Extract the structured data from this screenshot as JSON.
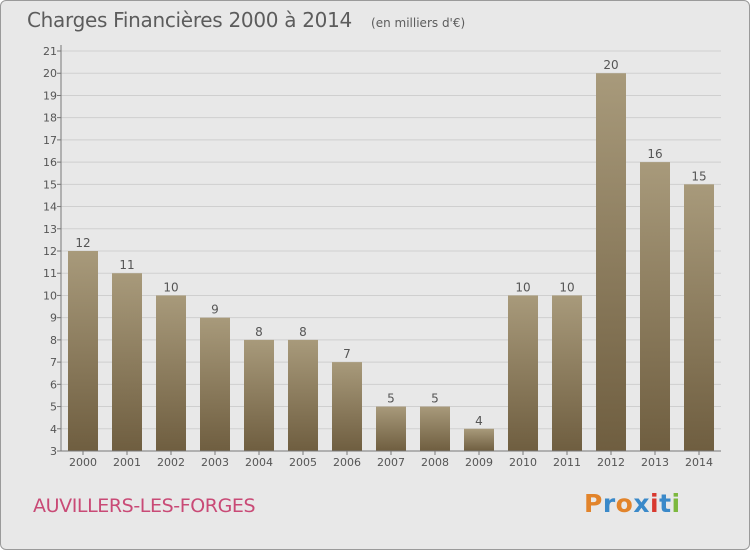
{
  "header": {
    "title": "Charges Financières 2000 à 2014",
    "subtitle": "(en milliers d'€)"
  },
  "footer": {
    "commune": "AUVILLERS-LES-FORGES",
    "logo_text": "Proxiti",
    "logo_colors": [
      "#e2842b",
      "#3a89c9",
      "#e2842b",
      "#3a89c9",
      "#d8392f",
      "#3a89c9",
      "#7cb83e"
    ]
  },
  "colors": {
    "bar_top": "#a89a7b",
    "bar_bottom": "#6f5e40",
    "grid": "#cfcfcf",
    "axis_text": "#555555"
  },
  "chart_data": {
    "type": "bar",
    "categories": [
      "2000",
      "2001",
      "2002",
      "2003",
      "2004",
      "2005",
      "2006",
      "2007",
      "2008",
      "2009",
      "2010",
      "2011",
      "2012",
      "2013",
      "2014"
    ],
    "values": [
      12,
      11,
      10,
      9,
      8,
      8,
      7,
      5,
      5,
      4,
      10,
      10,
      20,
      16,
      15
    ],
    "title": "Charges Financières 2000 à 2014",
    "subtitle": "(en milliers d'€)",
    "ylim": [
      3,
      21
    ],
    "yticks": [
      3,
      4,
      5,
      6,
      7,
      8,
      9,
      10,
      11,
      12,
      13,
      14,
      15,
      16,
      17,
      18,
      19,
      20,
      21
    ],
    "grid": true,
    "data_labels": true
  }
}
